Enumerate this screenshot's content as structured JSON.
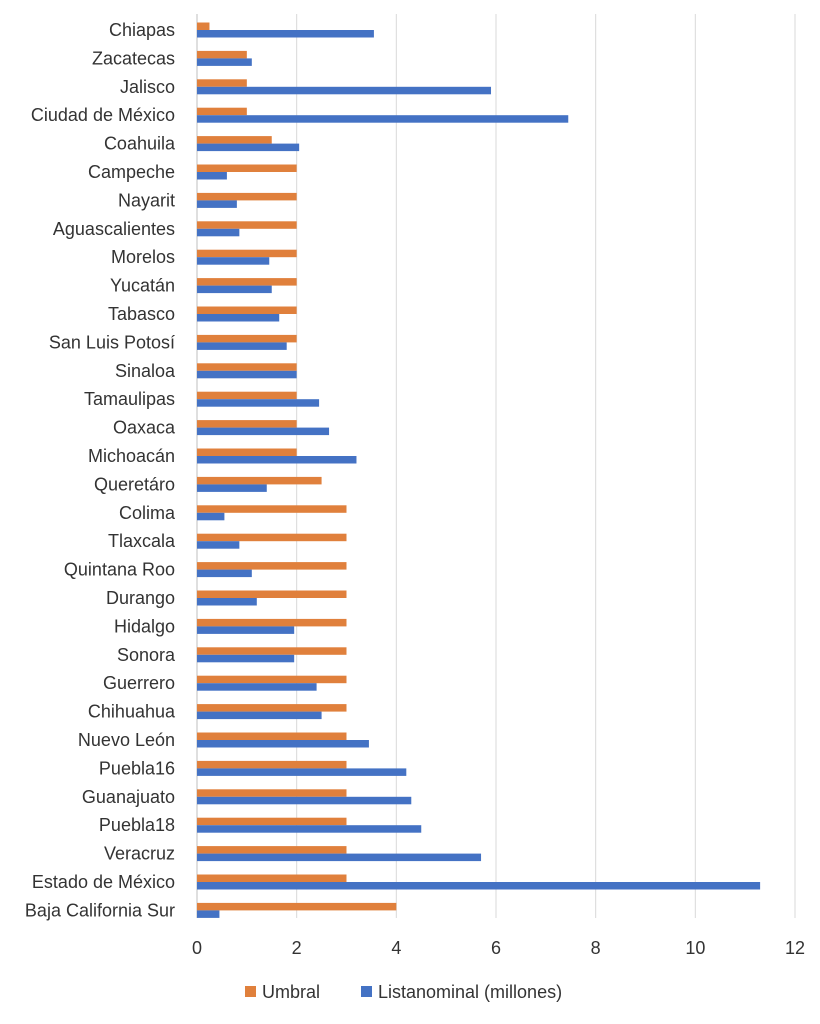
{
  "chart_data": {
    "type": "bar",
    "orientation": "horizontal",
    "categories": [
      "Chiapas",
      "Zacatecas",
      "Jalisco",
      "Ciudad de México",
      "Coahuila",
      "Campeche",
      "Nayarit",
      "Aguascalientes",
      "Morelos",
      "Yucatán",
      "Tabasco",
      "San Luis Potosí",
      "Sinaloa",
      "Tamaulipas",
      "Oaxaca",
      "Michoacán",
      "Queretáro",
      "Colima",
      "Tlaxcala",
      "Quintana Roo",
      "Durango",
      "Hidalgo",
      "Sonora",
      "Guerrero",
      "Chihuahua",
      "Nuevo León",
      "Puebla16",
      "Guanajuato",
      "Puebla18",
      "Veracruz",
      "Estado de México",
      "Baja California Sur"
    ],
    "series": [
      {
        "name": "Umbral",
        "color": "#E0803C",
        "values": [
          0.25,
          1,
          1,
          1,
          1.5,
          2,
          2,
          2,
          2,
          2,
          2,
          2,
          2,
          2,
          2,
          2,
          2.5,
          3,
          3,
          3,
          3,
          3,
          3,
          3,
          3,
          3,
          3,
          3,
          3,
          3,
          3,
          4
        ]
      },
      {
        "name": "Listanominal (millones)",
        "color": "#4472C4",
        "values": [
          3.55,
          1.1,
          5.9,
          7.45,
          2.05,
          0.6,
          0.8,
          0.85,
          1.45,
          1.5,
          1.65,
          1.8,
          2.0,
          2.45,
          2.65,
          3.2,
          1.4,
          0.55,
          0.85,
          1.1,
          1.2,
          1.95,
          1.95,
          2.4,
          2.5,
          3.45,
          4.2,
          4.3,
          4.5,
          5.7,
          11.3,
          0.45
        ]
      }
    ],
    "xlim": [
      0,
      12
    ],
    "xticks": [
      0,
      2,
      4,
      6,
      8,
      10,
      12
    ],
    "grid": true,
    "legend_position": "bottom",
    "title": "",
    "xlabel": "",
    "ylabel": ""
  }
}
